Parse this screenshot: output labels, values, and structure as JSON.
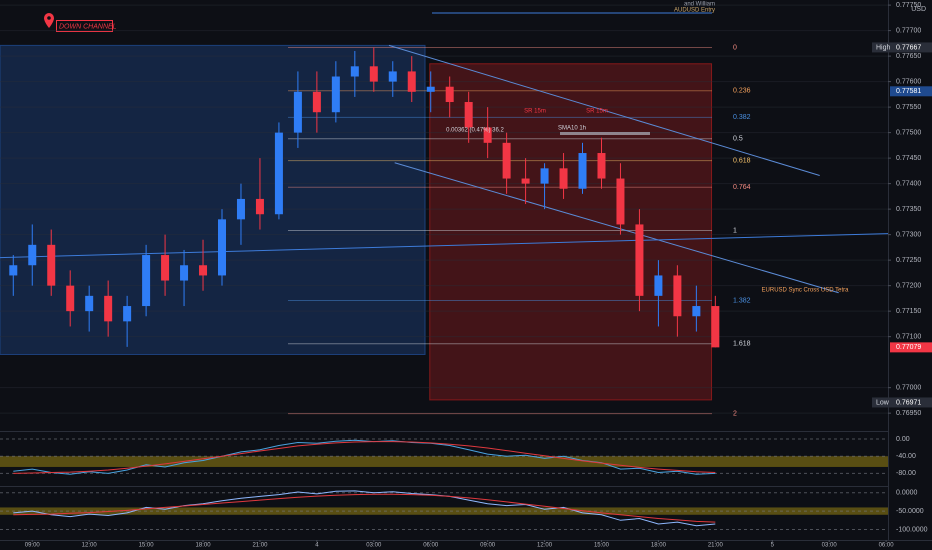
{
  "chart_data": [
    {
      "type": "candlestick",
      "title": "DOWN CHANNEL",
      "currency": "USD",
      "x": [
        -1,
        0,
        1,
        2,
        3,
        4,
        5,
        6,
        7,
        8,
        9,
        10,
        11,
        12,
        13,
        14,
        15,
        16,
        17,
        18,
        19,
        20,
        21,
        22,
        23,
        24,
        25,
        26,
        27,
        28,
        29,
        30,
        31,
        32,
        33,
        34,
        35,
        36
      ],
      "open": [
        0.7722,
        0.7724,
        0.7728,
        0.772,
        0.7715,
        0.7718,
        0.7713,
        0.7716,
        0.7726,
        0.7721,
        0.7724,
        0.7722,
        0.7733,
        0.7737,
        0.7734,
        0.775,
        0.7758,
        0.7754,
        0.7761,
        0.7763,
        0.776,
        0.7762,
        0.7758,
        0.7759,
        0.7756,
        0.7751,
        0.7748,
        0.7741,
        0.774,
        0.7743,
        0.7739,
        0.7746,
        0.7741,
        0.7732,
        0.7718,
        0.7722,
        0.7714,
        0.7716
      ],
      "high": [
        0.7726,
        0.7732,
        0.7731,
        0.7723,
        0.772,
        0.7721,
        0.7718,
        0.7728,
        0.773,
        0.7727,
        0.7729,
        0.7735,
        0.774,
        0.7745,
        0.7752,
        0.7762,
        0.7762,
        0.7764,
        0.7766,
        0.77667,
        0.7764,
        0.7765,
        0.7762,
        0.7761,
        0.7758,
        0.7755,
        0.775,
        0.7745,
        0.7744,
        0.7746,
        0.7748,
        0.7749,
        0.7744,
        0.7735,
        0.7725,
        0.7724,
        0.772,
        0.7718
      ],
      "low": [
        0.7718,
        0.772,
        0.7718,
        0.7712,
        0.7711,
        0.771,
        0.7708,
        0.7714,
        0.7718,
        0.7716,
        0.7719,
        0.772,
        0.7728,
        0.7731,
        0.7733,
        0.7747,
        0.775,
        0.7752,
        0.7757,
        0.7758,
        0.7757,
        0.7756,
        0.7754,
        0.7753,
        0.7748,
        0.7745,
        0.7738,
        0.7736,
        0.7735,
        0.7737,
        0.7738,
        0.7739,
        0.773,
        0.7715,
        0.7712,
        0.771,
        0.7711,
        0.77079
      ],
      "close": [
        0.7724,
        0.7728,
        0.772,
        0.7715,
        0.7718,
        0.7713,
        0.7716,
        0.7726,
        0.7721,
        0.7724,
        0.7722,
        0.7733,
        0.7737,
        0.7734,
        0.775,
        0.7758,
        0.7754,
        0.7761,
        0.7763,
        0.776,
        0.7762,
        0.7758,
        0.7759,
        0.7756,
        0.7751,
        0.7748,
        0.7741,
        0.774,
        0.7743,
        0.7739,
        0.7746,
        0.7741,
        0.7732,
        0.7718,
        0.7722,
        0.7714,
        0.7716,
        0.77079
      ],
      "up_color": "#2f7df6",
      "down_color": "#f23645",
      "xlim": [
        -1.7,
        45.1
      ],
      "xticks": [
        {
          "value": 0,
          "label": "09:00"
        },
        {
          "value": 3,
          "label": "12:00"
        },
        {
          "value": 6,
          "label": "15:00"
        },
        {
          "value": 9,
          "label": "18:00"
        },
        {
          "value": 12,
          "label": "21:00"
        },
        {
          "value": 15,
          "label": "4"
        },
        {
          "value": 18,
          "label": "03:00"
        },
        {
          "value": 21,
          "label": "06:00"
        },
        {
          "value": 24,
          "label": "09:00"
        },
        {
          "value": 27,
          "label": "12:00"
        },
        {
          "value": 30,
          "label": "15:00"
        },
        {
          "value": 33,
          "label": "18:00"
        },
        {
          "value": 36,
          "label": "21:00"
        },
        {
          "value": 39,
          "label": "5"
        },
        {
          "value": 42,
          "label": "03:00"
        },
        {
          "value": 45,
          "label": "06:00"
        }
      ],
      "ylim": [
        0.76917,
        0.7776
      ],
      "yticks": [
        {
          "value": 0.7775,
          "label": "0.77750"
        },
        {
          "value": 0.777,
          "label": "0.77700"
        },
        {
          "value": 0.7765,
          "label": "0.77650"
        },
        {
          "value": 0.776,
          "label": "0.77600"
        },
        {
          "value": 0.7755,
          "label": "0.77550"
        },
        {
          "value": 0.775,
          "label": "0.77500"
        },
        {
          "value": 0.7745,
          "label": "0.77450"
        },
        {
          "value": 0.774,
          "label": "0.77400"
        },
        {
          "value": 0.7735,
          "label": "0.77350"
        },
        {
          "value": 0.773,
          "label": "0.77300"
        },
        {
          "value": 0.7725,
          "label": "0.77250"
        },
        {
          "value": 0.772,
          "label": "0.77200"
        },
        {
          "value": 0.7715,
          "label": "0.77150"
        },
        {
          "value": 0.771,
          "label": "0.77100"
        },
        {
          "value": 0.77,
          "label": "0.77000"
        },
        {
          "value": 0.7695,
          "label": "0.76950"
        }
      ],
      "grid": true,
      "zones": [
        {
          "from": -1.7,
          "to": 20.7,
          "top": 0.77671,
          "bottom": 0.77065,
          "color": "#1f4a8f"
        },
        {
          "from": 20.95,
          "to": 35.8,
          "top": 0.77635,
          "bottom": 0.76976,
          "color": "#9c1c1c"
        }
      ],
      "fib_levels": [
        {
          "label": "0",
          "price": 0.77667,
          "color": "#f28b82"
        },
        {
          "label": "0.236",
          "price": 0.77582,
          "color": "#f5a25d"
        },
        {
          "label": "0.382",
          "price": 0.7753,
          "color": "#4a90e2"
        },
        {
          "label": "0.5",
          "price": 0.77488,
          "color": "#d1d4dc"
        },
        {
          "label": "0.618",
          "price": 0.77445,
          "color": "#f5c26b"
        },
        {
          "label": "0.764",
          "price": 0.77393,
          "color": "#f28b82"
        },
        {
          "label": "1",
          "price": 0.77308,
          "color": "#d1d4dc"
        },
        {
          "label": "1.382",
          "price": 0.77171,
          "color": "#4a90e2"
        },
        {
          "label": "1.618",
          "price": 0.77086,
          "color": "#d1d4dc"
        },
        {
          "label": "2",
          "price": 0.76949,
          "color": "#f28b82"
        }
      ],
      "lines": [
        {
          "from": [
            18.8,
            0.77671
          ],
          "to": [
            41.5,
            0.77416
          ],
          "color": "#5b8bd6"
        },
        {
          "from": [
            19.1,
            0.77441
          ],
          "to": [
            42.5,
            0.77186
          ],
          "color": "#5b8bd6"
        },
        {
          "from": [
            -1.7,
            0.77255
          ],
          "to": [
            45.1,
            0.77302
          ],
          "color": "#3d7bd9"
        }
      ],
      "price_tags": [
        {
          "name": "High",
          "value": 0.77667,
          "label": "0.77667",
          "color": "#2a2e39"
        },
        {
          "value": 0.77581,
          "label": "0.77581",
          "color": "#1f4a8f"
        },
        {
          "value": 0.77079,
          "label": "0.77079",
          "color": "#f23645"
        },
        {
          "name": "Low",
          "value": 0.76971,
          "label": "0.76971",
          "color": "#2a2e39"
        }
      ],
      "annotations": [
        "and William",
        "AUDUSD Entry",
        "SR 15m",
        "SR 15m",
        "SMA10 1h",
        "0.00362 (0.47%) 36.2",
        "EURUSD Sync Cross USD Tetra"
      ]
    },
    {
      "type": "line",
      "ylim": [
        -107,
        14
      ],
      "yticks": [
        {
          "value": 0,
          "label": "0.00"
        },
        {
          "value": -40,
          "label": "-40.00"
        },
        {
          "value": -80,
          "label": "-80.00"
        }
      ],
      "band": [
        -40,
        -65
      ],
      "band_color": "#7a6a12",
      "series": [
        {
          "color": "#4aa3df",
          "values": [
            -75,
            -70,
            -78,
            -82,
            -76,
            -80,
            -72,
            -60,
            -65,
            -55,
            -50,
            -40,
            -30,
            -25,
            -15,
            -8,
            -10,
            -5,
            -3,
            -6,
            -4,
            -8,
            -10,
            -15,
            -25,
            -35,
            -40,
            -38,
            -45,
            -40,
            -50,
            -55,
            -70,
            -68,
            -78,
            -75,
            -82,
            -80
          ]
        },
        {
          "color": "#e0393e",
          "values": [
            -80,
            -79,
            -78,
            -77,
            -75,
            -72,
            -68,
            -63,
            -58,
            -52,
            -46,
            -40,
            -34,
            -28,
            -22,
            -16,
            -12,
            -9,
            -7,
            -6,
            -6,
            -7,
            -9,
            -12,
            -16,
            -21,
            -27,
            -33,
            -39,
            -45,
            -51,
            -56,
            -61,
            -66,
            -70,
            -73,
            -76,
            -78
          ]
        }
      ]
    },
    {
      "type": "line",
      "ylim": [
        -126,
        13
      ],
      "yticks": [
        {
          "value": 0,
          "label": "0.0000"
        },
        {
          "value": -50,
          "label": "-50.0000"
        },
        {
          "value": -100,
          "label": "-100.0000"
        }
      ],
      "band": [
        -40,
        -60
      ],
      "band_color": "#7a6a12",
      "series": [
        {
          "color": "#8fb8ff",
          "values": [
            -55,
            -50,
            -60,
            -65,
            -58,
            -62,
            -55,
            -40,
            -45,
            -35,
            -30,
            -22,
            -15,
            -10,
            -5,
            2,
            -3,
            4,
            5,
            0,
            3,
            -2,
            -5,
            -10,
            -20,
            -30,
            -35,
            -32,
            -45,
            -40,
            -55,
            -60,
            -75,
            -70,
            -85,
            -80,
            -90,
            -85
          ]
        },
        {
          "color": "#e0393e",
          "values": [
            -60,
            -59,
            -58,
            -56,
            -54,
            -51,
            -48,
            -44,
            -40,
            -36,
            -32,
            -28,
            -24,
            -20,
            -16,
            -12,
            -9,
            -7,
            -5,
            -4,
            -4,
            -5,
            -7,
            -10,
            -14,
            -19,
            -25,
            -31,
            -37,
            -43,
            -49,
            -55,
            -60,
            -65,
            -70,
            -74,
            -78,
            -80
          ]
        }
      ]
    }
  ]
}
